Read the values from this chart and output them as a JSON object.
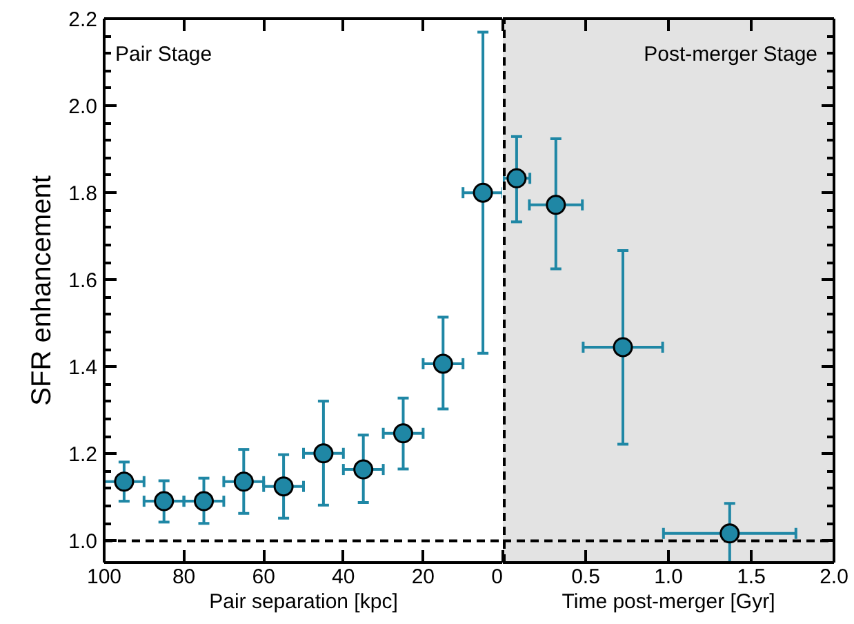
{
  "chart_data": [
    {
      "type": "scatter",
      "xlabel": "Pair separation [kpc]",
      "ylabel": "SFR enhancement",
      "color": "#1f87a5",
      "marker": "circle",
      "x": [
        95,
        85,
        75,
        65,
        55,
        45,
        35,
        25,
        15,
        5
      ],
      "values": [
        1.136,
        1.091,
        1.091,
        1.136,
        1.125,
        1.201,
        1.164,
        1.247,
        1.407,
        1.8
      ],
      "errors": [
        [
          1.091,
          1.181
        ],
        [
          1.043,
          1.138
        ],
        [
          1.04,
          1.144
        ],
        [
          1.063,
          1.21
        ],
        [
          1.052,
          1.198
        ],
        [
          1.082,
          1.321
        ],
        [
          1.088,
          1.243
        ],
        [
          1.165,
          1.328
        ],
        [
          1.303,
          1.514
        ],
        [
          1.431,
          2.169
        ]
      ],
      "xerrors": [
        5,
        5,
        5,
        5,
        5,
        5,
        5,
        5,
        5,
        5
      ],
      "xlim": [
        100,
        0
      ],
      "xticks": [
        100,
        80,
        60,
        40,
        20,
        0
      ],
      "ylim": [
        0.95,
        2.2
      ],
      "yticks": [
        {
          "value": 1.0,
          "label": "1.0"
        },
        {
          "value": 1.2,
          "label": "1.2"
        },
        {
          "value": 1.4,
          "label": "1.4"
        },
        {
          "value": 1.6,
          "label": "1.6"
        },
        {
          "value": 1.8,
          "label": "1.8"
        },
        {
          "value": 2.0,
          "label": "2.0"
        },
        {
          "value": 2.2,
          "label": "2.2"
        }
      ],
      "ref_lines": [
        {
          "axis": "y",
          "value": 1.0,
          "line_style": "dashed",
          "color": "#000000"
        }
      ],
      "annotations": [
        "Pair Stage"
      ]
    },
    {
      "type": "scatter",
      "xlabel": "Time post-merger [Gyr]",
      "color": "#1f87a5",
      "marker": "circle",
      "tick_labels": "x",
      "x": [
        0.083,
        0.32,
        0.725,
        1.37
      ],
      "values": [
        1.833,
        1.772,
        1.445,
        1.017
      ],
      "errors": [
        [
          1.733,
          1.929
        ],
        [
          1.625,
          1.924
        ],
        [
          1.222,
          1.667
        ],
        [
          0.95,
          1.086
        ]
      ],
      "xerrors": [
        0.08,
        0.16,
        0.24,
        0.4
      ],
      "xlim": [
        0,
        2.0
      ],
      "xticks": [
        {
          "value": 0,
          "label": null
        },
        0.5,
        {
          "value": 1.0,
          "label": "1.0"
        },
        1.5,
        {
          "value": 2.0,
          "label": "2.0"
        }
      ],
      "ylim": [
        0.95,
        2.2
      ],
      "bands": [
        {
          "axis": "x",
          "from": 0,
          "to": 2.0,
          "color": "#e3e3e3"
        }
      ],
      "yticks": [
        {
          "value": 1.0,
          "label": null
        },
        {
          "value": 1.2,
          "label": null
        },
        {
          "value": 1.4,
          "label": null
        },
        {
          "value": 1.6,
          "label": null
        },
        {
          "value": 1.8,
          "label": null
        },
        {
          "value": 2.0,
          "label": null
        },
        {
          "value": 2.2,
          "label": null
        }
      ],
      "ref_lines": [
        {
          "axis": "y",
          "value": 1.0,
          "line_style": "dashed",
          "color": "#000000"
        },
        {
          "axis": "x",
          "value": 0,
          "line_style": "dashed",
          "color": "#000000"
        }
      ],
      "annotations": [
        "Post-merger Stage"
      ]
    }
  ]
}
